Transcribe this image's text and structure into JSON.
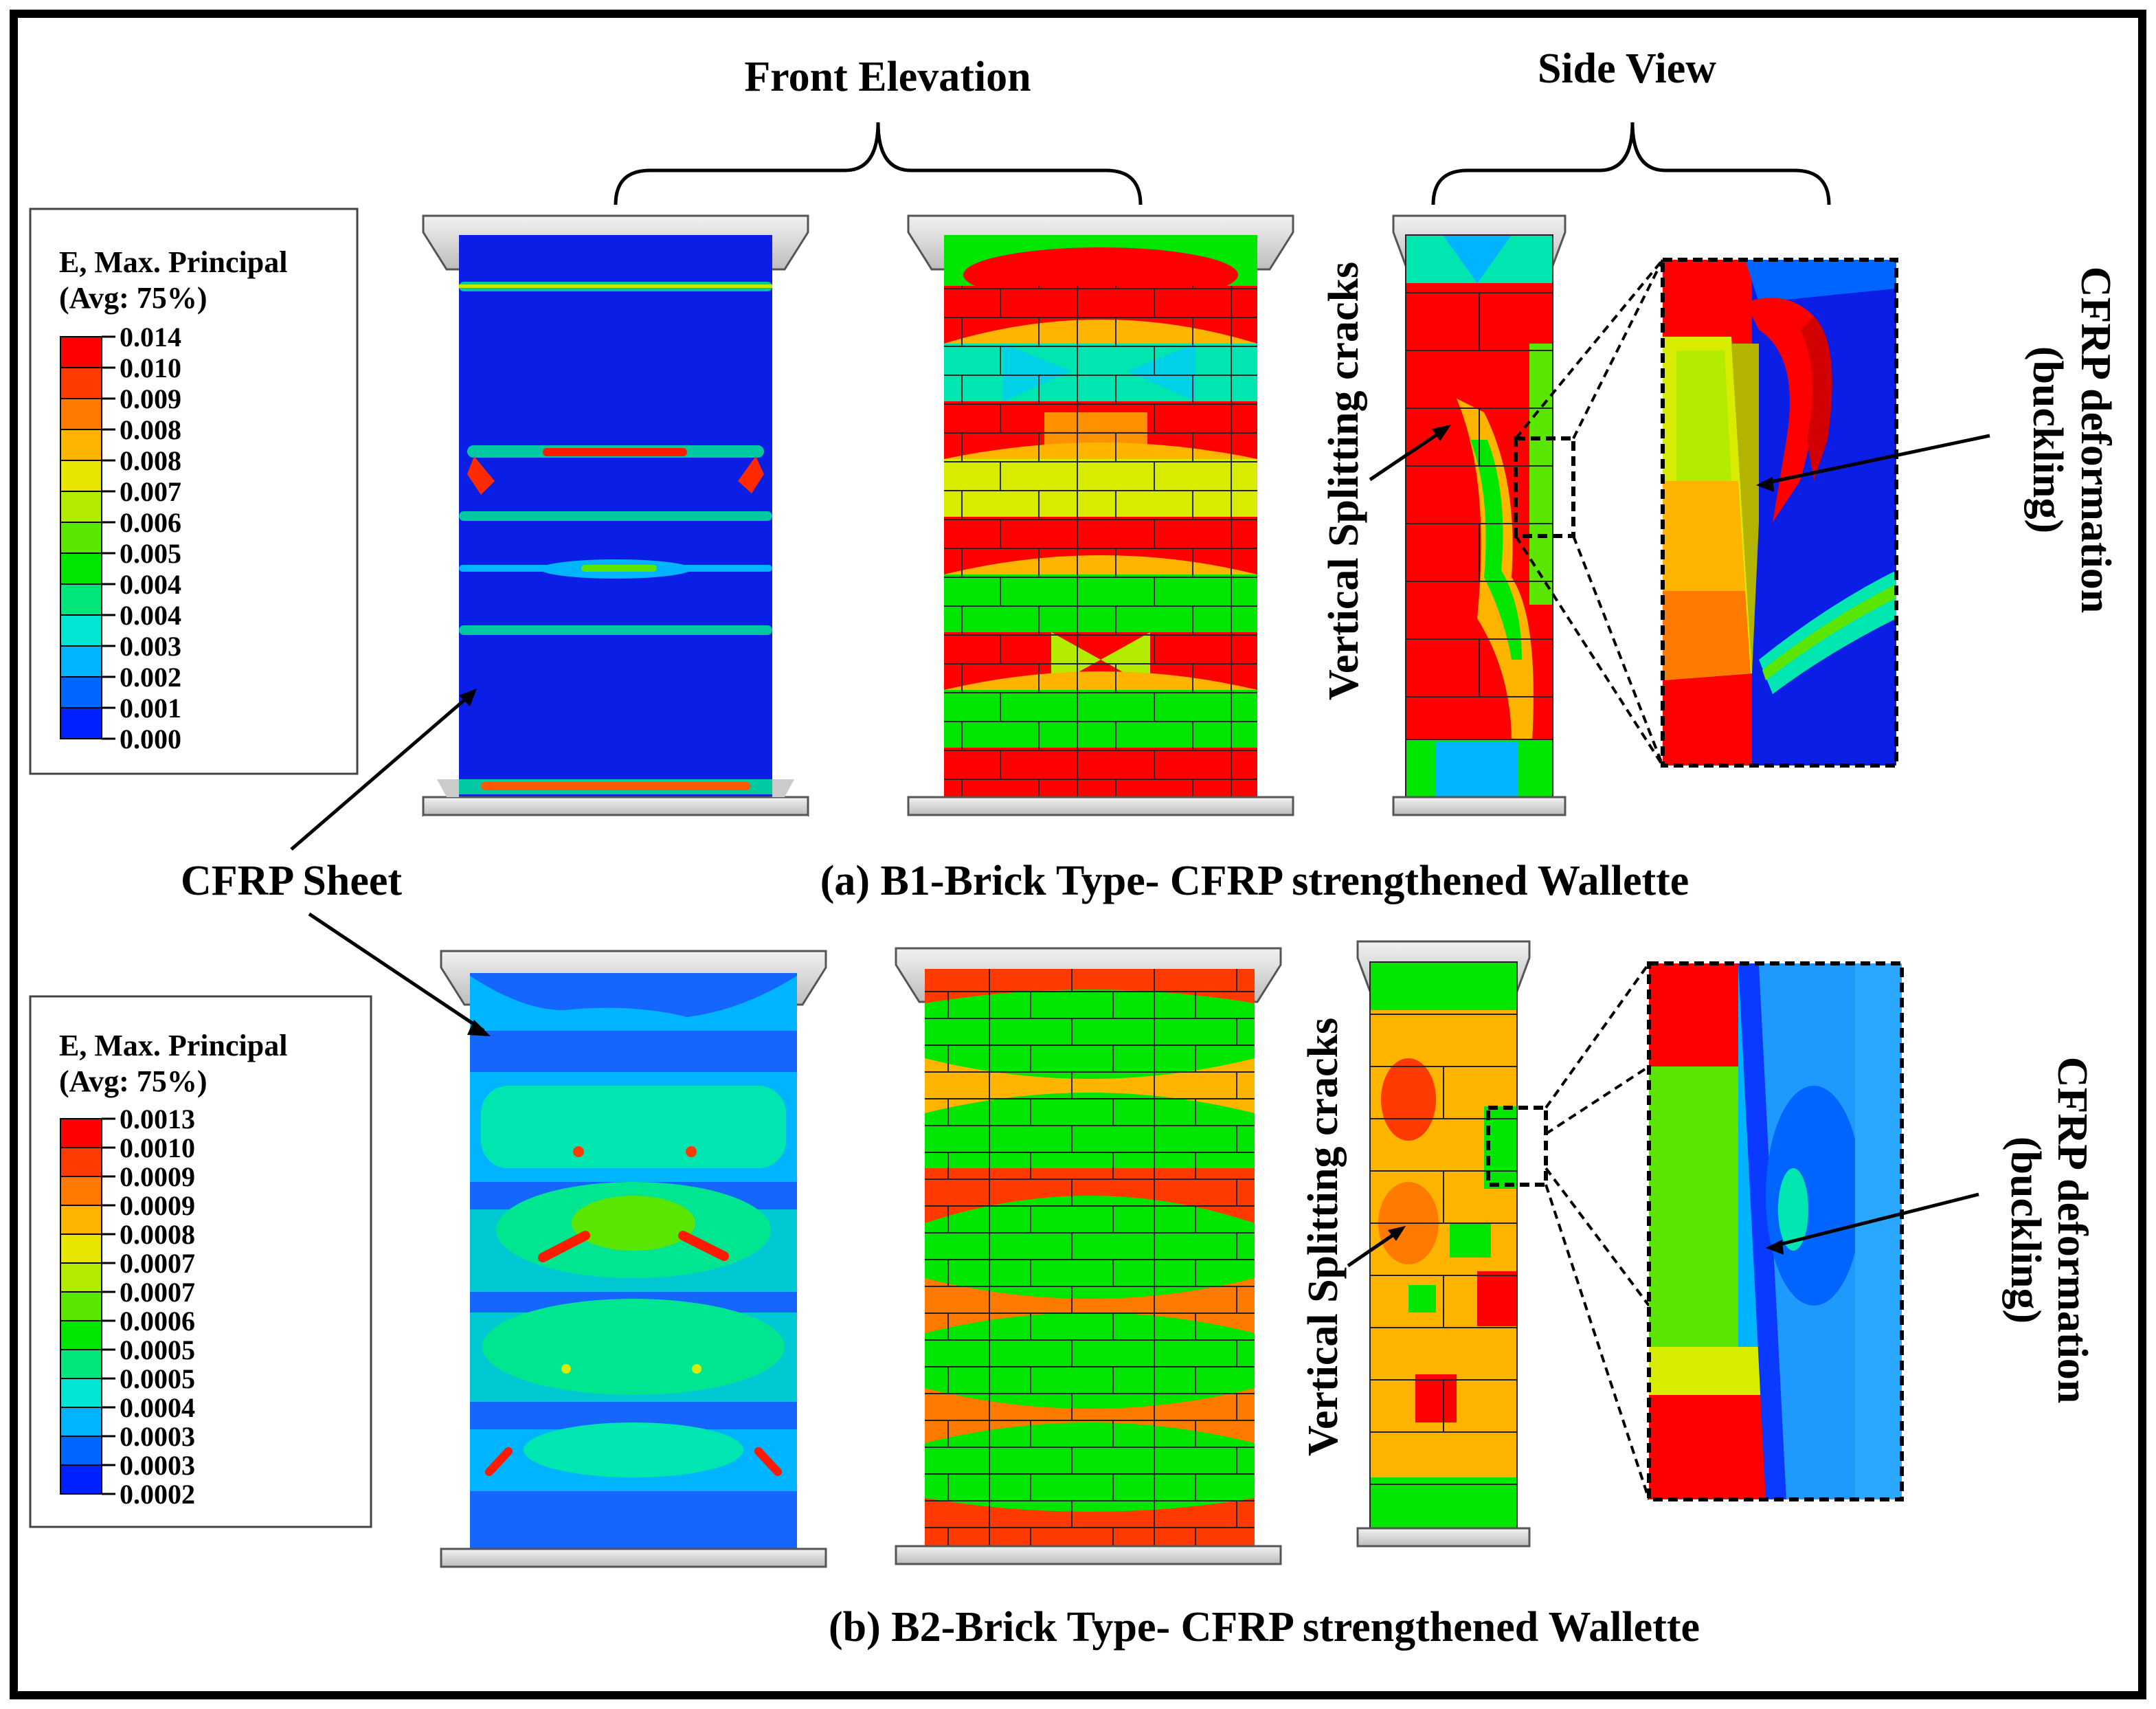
{
  "headers": {
    "front_elevation": "Front Elevation",
    "side_view": "Side View"
  },
  "annotations": {
    "cfrp_sheet": "CFRP Sheet",
    "vertical_splitting_a": "Vertical Splitting cracks",
    "vertical_splitting_b": "Vertical Splitting cracks",
    "cfrp_deformation_a_line1": "CFRP deformation",
    "cfrp_deformation_a_line2": "(buckling)",
    "cfrp_deformation_b_line1": "CFRP deformation",
    "cfrp_deformation_b_line2": "(buckling)"
  },
  "captions": {
    "a": "(a) B1-Brick Type- CFRP strengthened Wallette",
    "b": "(b) B2-Brick Type- CFRP strengthened Wallette"
  },
  "legend_a": {
    "title_line1": "E, Max. Principal",
    "title_line2": "(Avg: 75%)",
    "values": [
      "0.014",
      "0.010",
      "0.009",
      "0.008",
      "0.008",
      "0.007",
      "0.006",
      "0.005",
      "0.004",
      "0.004",
      "0.003",
      "0.002",
      "0.001",
      "0.000"
    ]
  },
  "legend_b": {
    "title_line1": "E, Max. Principal",
    "title_line2": "(Avg: 75%)",
    "values": [
      "0.0013",
      "0.0010",
      "0.0009",
      "0.0009",
      "0.0008",
      "0.0007",
      "0.0007",
      "0.0006",
      "0.0005",
      "0.0005",
      "0.0004",
      "0.0003",
      "0.0003",
      "0.0002"
    ]
  },
  "colors": {
    "scale": [
      "#ff0000",
      "#ff3a00",
      "#ff7a00",
      "#ffb400",
      "#e6e600",
      "#b4ec00",
      "#5ae600",
      "#00e600",
      "#00e67a",
      "#00e6d2",
      "#00b4ff",
      "#0064ff",
      "#0020ff"
    ],
    "frame": "#000000",
    "plate": "#dcdcdc"
  }
}
